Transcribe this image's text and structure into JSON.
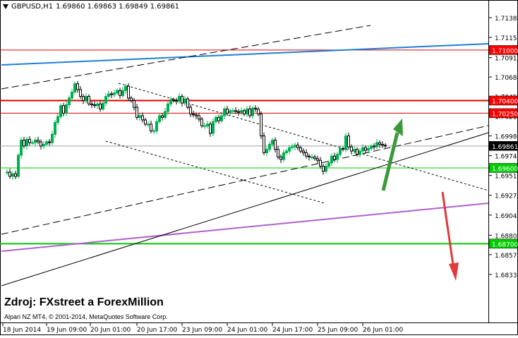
{
  "header": {
    "symbol_timeframe": "GBPUSD,H1",
    "quotes": "1.69860 1.69863 1.69849 1.69861"
  },
  "source_caption": "Zdroj: FXstreet a ForexMillion",
  "copyright": "Alpari NZ MT4, © 2001-2014, MetaQuotes Software Corp.",
  "y_axis_labels": [
    "1.71385",
    "1.71150",
    "1.70910",
    "1.70680",
    "1.70450",
    "1.70215",
    "1.69980",
    "1.69745",
    "1.69510",
    "1.69275",
    "1.69040",
    "1.68800",
    "1.68570",
    "1.68335"
  ],
  "x_axis_labels": [
    "18 Jun 2014",
    "19 Jun 09:00",
    "20 Jun 01:00",
    "20 Jun 17:00",
    "23 Jun 09:00",
    "24 Jun 01:00",
    "24 Jun 17:00",
    "25 Jun 09:00",
    "26 Jun 01:00"
  ],
  "price_tags": [
    {
      "label": "1.71000",
      "price": 1.71,
      "color": "#ff0000"
    },
    {
      "label": "1.70400",
      "price": 1.704,
      "color": "#ff0000"
    },
    {
      "label": "1.70250",
      "price": 1.7025,
      "color": "#ff0000"
    },
    {
      "label": "1.69861",
      "price": 1.69861,
      "color": "#000000"
    },
    {
      "label": "1.69600",
      "price": 1.696,
      "color": "#00cc00"
    },
    {
      "label": "1.68700",
      "price": 1.687,
      "color": "#00cc00"
    }
  ],
  "colors": {
    "bull_candle": "#00b050",
    "bear_candle": "#000000",
    "resistance": "#e00000",
    "support": "#00cc00",
    "blue_line": "#1e7fd8",
    "purple_line": "#b060d0",
    "up_arrow": "#3a9a3a",
    "down_arrow": "#e03a3a"
  },
  "chart_data": {
    "type": "candlestick",
    "symbol": "GBPUSD",
    "timeframe": "H1",
    "last": 1.69861,
    "ylim": [
      1.6825,
      1.715
    ],
    "horizontal_levels": [
      1.71,
      1.704,
      1.7025,
      1.696,
      1.687
    ],
    "close_path": [
      [
        0,
        1.6955
      ],
      [
        4,
        1.6955
      ],
      [
        8,
        1.695
      ],
      [
        12,
        1.6953
      ],
      [
        16,
        1.695
      ],
      [
        20,
        1.6975
      ],
      [
        24,
        1.6993
      ],
      [
        28,
        1.6986
      ],
      [
        32,
        1.6994
      ],
      [
        36,
        1.699
      ],
      [
        40,
        1.699
      ],
      [
        44,
        1.6993
      ],
      [
        48,
        1.6991
      ],
      [
        52,
        1.6986
      ],
      [
        56,
        1.6988
      ],
      [
        60,
        1.6991
      ],
      [
        64,
        1.699
      ],
      [
        68,
        1.7
      ],
      [
        72,
        1.7014
      ],
      [
        76,
        1.7021
      ],
      [
        80,
        1.7034
      ],
      [
        84,
        1.7025
      ],
      [
        88,
        1.7035
      ],
      [
        92,
        1.7043
      ],
      [
        96,
        1.705
      ],
      [
        100,
        1.706
      ],
      [
        104,
        1.7053
      ],
      [
        108,
        1.7045
      ],
      [
        112,
        1.704
      ],
      [
        116,
        1.7045
      ],
      [
        120,
        1.7036
      ],
      [
        124,
        1.7035
      ],
      [
        128,
        1.7034
      ],
      [
        132,
        1.7036
      ],
      [
        136,
        1.703
      ],
      [
        140,
        1.7037
      ],
      [
        144,
        1.7045
      ],
      [
        148,
        1.7048
      ],
      [
        152,
        1.7047
      ],
      [
        156,
        1.7049
      ],
      [
        160,
        1.7052
      ],
      [
        164,
        1.7046
      ],
      [
        168,
        1.7052
      ],
      [
        172,
        1.7057
      ],
      [
        176,
        1.7043
      ],
      [
        180,
        1.704
      ],
      [
        184,
        1.7032
      ],
      [
        188,
        1.702
      ],
      [
        192,
        1.7022
      ],
      [
        196,
        1.7017
      ],
      [
        200,
        1.7012
      ],
      [
        204,
        1.7012
      ],
      [
        208,
        1.7004
      ],
      [
        212,
        1.7004
      ],
      [
        216,
        1.7015
      ],
      [
        220,
        1.7022
      ],
      [
        224,
        1.702
      ],
      [
        228,
        1.7027
      ],
      [
        232,
        1.7036
      ],
      [
        236,
        1.7041
      ],
      [
        240,
        1.704
      ],
      [
        244,
        1.7039
      ],
      [
        248,
        1.7045
      ],
      [
        252,
        1.7037
      ],
      [
        256,
        1.7042
      ],
      [
        260,
        1.7032
      ],
      [
        264,
        1.7024
      ],
      [
        268,
        1.7023
      ],
      [
        272,
        1.7022
      ],
      [
        276,
        1.7018
      ],
      [
        280,
        1.701
      ],
      [
        284,
        1.701
      ],
      [
        288,
        1.7012
      ],
      [
        292,
        1.7001
      ],
      [
        296,
        1.7015
      ],
      [
        300,
        1.702
      ],
      [
        304,
        1.7016
      ],
      [
        308,
        1.7022
      ],
      [
        312,
        1.703
      ],
      [
        316,
        1.7025
      ],
      [
        320,
        1.7028
      ],
      [
        324,
        1.7028
      ],
      [
        328,
        1.7027
      ],
      [
        332,
        1.7026
      ],
      [
        336,
        1.7028
      ],
      [
        340,
        1.7024
      ],
      [
        344,
        1.703
      ],
      [
        348,
        1.7022
      ],
      [
        352,
        1.7031
      ],
      [
        356,
        1.703
      ],
      [
        360,
        1.7024
      ],
      [
        364,
        1.6998
      ],
      [
        368,
        1.6978
      ],
      [
        372,
        1.6982
      ],
      [
        376,
        1.6988
      ],
      [
        380,
        1.6993
      ],
      [
        384,
        1.6982
      ],
      [
        388,
        1.6973
      ],
      [
        392,
        1.697
      ],
      [
        396,
        1.6978
      ],
      [
        400,
        1.698
      ],
      [
        404,
        1.6984
      ],
      [
        408,
        1.6985
      ],
      [
        412,
        1.6987
      ],
      [
        416,
        1.6984
      ],
      [
        420,
        1.698
      ],
      [
        424,
        1.6978
      ],
      [
        428,
        1.6974
      ],
      [
        432,
        1.6973
      ],
      [
        436,
        1.6973
      ],
      [
        440,
        1.6971
      ],
      [
        444,
        1.6969
      ],
      [
        448,
        1.6962
      ],
      [
        452,
        1.6956
      ],
      [
        456,
        1.6962
      ],
      [
        460,
        1.6966
      ],
      [
        464,
        1.6974
      ],
      [
        468,
        1.697
      ],
      [
        472,
        1.6976
      ],
      [
        476,
        1.6983
      ],
      [
        480,
        1.6982
      ],
      [
        484,
        1.6998
      ],
      [
        488,
        1.6985
      ],
      [
        492,
        1.698
      ],
      [
        496,
        1.6982
      ],
      [
        500,
        1.6976
      ],
      [
        504,
        1.698
      ],
      [
        508,
        1.6984
      ],
      [
        512,
        1.6981
      ],
      [
        516,
        1.6983
      ],
      [
        520,
        1.6986
      ],
      [
        524,
        1.6985
      ],
      [
        528,
        1.699
      ],
      [
        532,
        1.6988
      ],
      [
        536,
        1.6987
      ],
      [
        540,
        1.6986
      ]
    ]
  }
}
